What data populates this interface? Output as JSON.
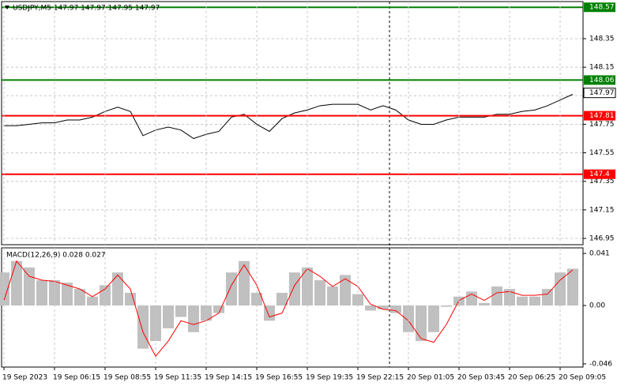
{
  "chart_data": [
    {
      "type": "line",
      "title": "USDJPY,M5  147.97 147.97 147.95 147.97",
      "color": "#000000",
      "values": [
        147.74,
        147.74,
        147.75,
        147.76,
        147.76,
        147.78,
        147.78,
        147.8,
        147.84,
        147.87,
        147.84,
        147.67,
        147.71,
        147.73,
        147.71,
        147.65,
        147.68,
        147.7,
        147.8,
        147.82,
        147.75,
        147.7,
        147.79,
        147.83,
        147.85,
        147.88,
        147.89,
        147.89,
        147.89,
        147.85,
        147.88,
        147.85,
        147.78,
        147.75,
        147.75,
        147.78,
        147.8,
        147.8,
        147.8,
        147.82,
        147.82,
        147.84,
        147.85,
        147.88,
        147.92,
        147.96
      ],
      "ylim": [
        146.906,
        148.61
      ],
      "yticks": [
        148.35,
        148.15,
        147.95,
        147.75,
        147.55,
        147.35,
        147.15,
        146.95
      ],
      "grid": true,
      "levels": [
        {
          "value": 148.57,
          "color": "#008000"
        },
        {
          "value": 148.06,
          "color": "#008000"
        },
        {
          "value": 147.81,
          "color": "#ff0000"
        },
        {
          "value": 147.4,
          "color": "#ff0000"
        }
      ],
      "current": 147.97
    },
    {
      "type": "macd",
      "title": "MACD(12,26,9) 0.028 0.027",
      "color": "#c0c0c0",
      "line_color": "#ff0000",
      "categories": [
        "19 Sep 2023",
        null,
        null,
        null,
        "19 Sep 06:15",
        null,
        null,
        null,
        "19 Sep 08:55",
        null,
        null,
        null,
        "19 Sep 11:35",
        null,
        null,
        null,
        "19 Sep 14:15",
        null,
        null,
        null,
        "19 Sep 16:55",
        null,
        null,
        null,
        "19 Sep 19:35",
        null,
        null,
        null,
        "19 Sep 22:15",
        null,
        null,
        null,
        "20 Sep 01:05",
        null,
        null,
        null,
        "20 Sep 03:45",
        null,
        null,
        null,
        "20 Sep 06:25",
        null,
        null,
        null,
        "20 Sep 09:05",
        null
      ],
      "values": [
        0.026,
        0.035,
        0.03,
        0.02,
        0.02,
        0.018,
        0.013,
        0.007,
        0.016,
        0.026,
        0.01,
        -0.034,
        -0.028,
        -0.018,
        -0.009,
        -0.021,
        -0.012,
        -0.006,
        0.026,
        0.035,
        0.01,
        -0.012,
        0.01,
        0.026,
        0.03,
        0.02,
        0.015,
        0.024,
        0.009,
        -0.004,
        -0.003,
        -0.006,
        -0.021,
        -0.028,
        -0.021,
        -0.001,
        0.007,
        0.011,
        0.002,
        0.015,
        0.013,
        0.007,
        0.007,
        0.013,
        0.026,
        0.029
      ],
      "line_values": [
        0.004,
        0.035,
        0.023,
        0.02,
        0.019,
        0.016,
        0.013,
        0.007,
        0.013,
        0.024,
        0.013,
        -0.021,
        -0.04,
        -0.028,
        -0.012,
        -0.015,
        -0.012,
        -0.006,
        0.016,
        0.032,
        0.016,
        -0.009,
        -0.006,
        0.016,
        0.029,
        0.023,
        0.015,
        0.021,
        0.015,
        0.001,
        -0.003,
        -0.004,
        -0.012,
        -0.026,
        -0.029,
        -0.015,
        0.004,
        0.009,
        0.004,
        0.01,
        0.011,
        0.008,
        0.008,
        0.009,
        0.02,
        0.028
      ],
      "ylim": [
        -0.0485,
        0.0454
      ],
      "yticks": [
        0.041,
        {
          "value": 0,
          "label": "0.00"
        },
        -0.046
      ]
    }
  ]
}
